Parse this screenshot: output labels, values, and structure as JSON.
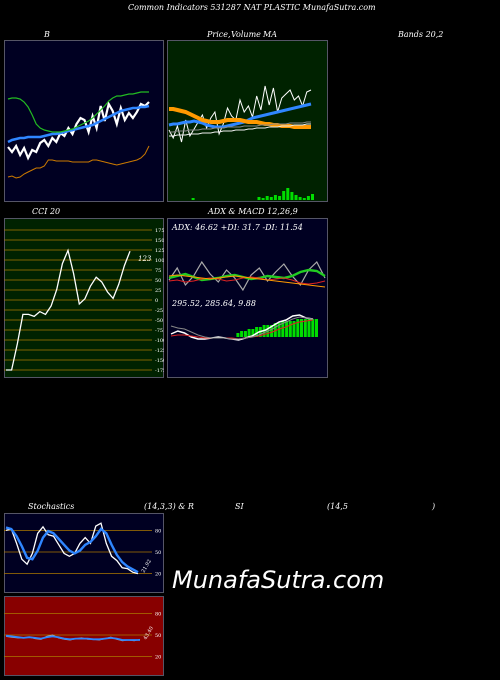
{
  "header": {
    "title": "Common  Indicators 531287 NAT PLASTIC MunafaSutra.com"
  },
  "titles": {
    "b": "B",
    "price_a": "Price,",
    "price_b": "Volume",
    "price_c": "MA",
    "bands": "Bands 20,2",
    "cci": "CCI 20",
    "adx_macd": "ADX  & MACD 12,26,9",
    "stoch": "Stochastics",
    "stoch_params": "(14,3,3) & R",
    "rsi": "SI",
    "rsi_params": "(14,5",
    "rsi_close": ")"
  },
  "adx_label": "ADX: 46.62  +DI: 31.7 -DI: 11.54",
  "macd_label": "295.52,  285.64,  9.88",
  "watermark": "MunafaSutra.com",
  "colors": {
    "dark_navy": "#000022",
    "dark_green": "#002200",
    "rsi_bg": "#880000"
  },
  "chart_data": [
    {
      "type": "line",
      "name": "bollinger",
      "series": [
        {
          "color": "#ffffff",
          "values": [
            147,
            152,
            146,
            155,
            148,
            158,
            150,
            152,
            143,
            140,
            146,
            138,
            142,
            133,
            136,
            128,
            134,
            124,
            118,
            120,
            132,
            116,
            128,
            106,
            121,
            104,
            111,
            124,
            108,
            120,
            113,
            118,
            112,
            104,
            106,
            102
          ]
        },
        {
          "color": "#2f86ff",
          "values": [
            142,
            140,
            139,
            138,
            138,
            137,
            137,
            137,
            137,
            136,
            135,
            134,
            134,
            133,
            132,
            131,
            130,
            129,
            128,
            127,
            126,
            125,
            123,
            121,
            119,
            117,
            115,
            113,
            111,
            110,
            109,
            108,
            108,
            107,
            107,
            106
          ]
        },
        {
          "color": "#22bb22",
          "values": [
            99,
            98,
            98,
            99,
            102,
            107,
            115,
            124,
            128,
            130,
            131,
            132,
            132,
            132,
            131,
            130,
            129,
            127,
            125,
            123,
            121,
            118,
            114,
            110,
            106,
            101,
            98,
            96,
            96,
            95,
            94,
            94,
            93,
            92,
            92,
            92
          ]
        },
        {
          "color": "#cc7a00",
          "values": [
            177,
            176,
            178,
            177,
            174,
            172,
            170,
            168,
            168,
            166,
            160,
            160,
            161,
            161,
            161,
            161,
            162,
            162,
            162,
            162,
            162,
            160,
            160,
            161,
            162,
            163,
            164,
            165,
            164,
            163,
            162,
            161,
            160,
            158,
            154,
            146
          ]
        }
      ]
    },
    {
      "type": "line",
      "name": "price_ma",
      "series": [
        {
          "color": "#ffffff",
          "values": [
            130,
            138,
            126,
            142,
            120,
            136,
            129,
            122,
            115,
            128,
            118,
            112,
            134,
            124,
            108,
            116,
            120,
            100,
            112,
            106,
            117,
            96,
            110,
            86,
            105,
            88,
            112,
            98,
            94,
            90,
            100,
            96,
            106,
            92,
            90
          ]
        },
        {
          "color": "#2f86ff",
          "values": [
            125,
            124,
            124,
            123,
            122,
            122,
            121,
            122,
            123,
            125,
            126,
            127,
            127,
            127,
            126,
            125,
            124,
            123,
            122,
            120,
            118,
            117,
            116,
            115,
            114,
            113,
            112,
            111,
            110,
            109,
            108,
            107,
            106,
            105,
            104
          ]
        },
        {
          "color": "#ff9900",
          "values": [
            109,
            109,
            110,
            111,
            112,
            114,
            116,
            118,
            120,
            121,
            122,
            122,
            122,
            121,
            120,
            120,
            120,
            120,
            121,
            122,
            122,
            122,
            123,
            124,
            124,
            125,
            125,
            126,
            126,
            126,
            127,
            127,
            127,
            127,
            127
          ]
        },
        {
          "color": "#888888",
          "values": [
            132,
            132,
            131,
            131,
            131,
            130,
            130,
            130,
            129,
            129,
            129,
            128,
            128,
            128,
            127,
            127,
            127,
            127,
            126,
            126,
            126,
            126,
            125,
            125,
            125,
            124,
            124,
            124,
            124,
            123,
            123,
            123,
            123,
            122,
            122
          ]
        },
        {
          "color": "#eeeeee",
          "values": [
            136,
            136,
            135,
            135,
            135,
            134,
            134,
            134,
            133,
            133,
            133,
            132,
            132,
            131,
            131,
            131,
            130,
            130,
            130,
            129,
            129,
            128,
            128,
            128,
            127,
            127,
            127,
            126,
            126,
            126,
            125,
            125,
            125,
            124,
            124
          ]
        }
      ],
      "volume": [
        0,
        0,
        0,
        0,
        0,
        2,
        0,
        0,
        0,
        0,
        0,
        0,
        0,
        0,
        0,
        0,
        0,
        0,
        0,
        0,
        0,
        3,
        2,
        4,
        3,
        5,
        4,
        9,
        12,
        8,
        5,
        3,
        2,
        4,
        6
      ]
    },
    {
      "type": "line",
      "name": "cci",
      "ylim": [
        -175,
        175
      ],
      "yticks": [
        175,
        150,
        125,
        100,
        75,
        50,
        25,
        0,
        -25,
        -50,
        -75,
        -100,
        -125,
        -150,
        -175
      ],
      "values": [
        -175,
        -175,
        -110,
        -36,
        -36,
        -41,
        -29,
        -36,
        -15,
        26,
        91,
        124,
        66,
        -10,
        3,
        35,
        57,
        45,
        20,
        4,
        39,
        86,
        122
      ],
      "last_label": "123"
    },
    {
      "type": "line",
      "name": "adx",
      "series": [
        {
          "color": "#aaaaaa",
          "values": [
            280,
            268,
            285,
            276,
            262,
            274,
            282,
            270,
            278,
            290,
            275,
            268,
            281,
            272,
            264,
            276,
            285,
            270,
            262,
            278
          ]
        },
        {
          "color": "#22cc22",
          "values": [
            278,
            276,
            274,
            277,
            280,
            279,
            278,
            276,
            275,
            277,
            279,
            278,
            276,
            277,
            278,
            276,
            272,
            270,
            271,
            276
          ]
        },
        {
          "color": "#dd2222",
          "values": [
            281,
            280,
            282,
            281,
            279,
            278,
            279,
            281,
            280,
            278,
            277,
            278,
            280,
            279,
            278,
            280,
            283,
            284,
            283,
            281
          ]
        },
        {
          "color": "#ff9900",
          "values": [
            276,
            275,
            276,
            277,
            278,
            279,
            278,
            277,
            276,
            277,
            278,
            279,
            280,
            281,
            282,
            283,
            284,
            285,
            286,
            287
          ]
        }
      ]
    },
    {
      "type": "bar",
      "name": "macd",
      "hist": [
        0,
        0,
        0,
        0,
        0,
        0,
        0,
        0,
        0,
        0,
        0,
        0,
        0,
        0,
        0,
        0,
        0,
        0,
        2,
        3,
        3,
        4,
        4,
        5,
        5,
        6,
        6,
        6,
        7,
        7,
        8,
        8,
        8,
        8,
        9,
        9,
        9,
        9,
        9,
        9
      ],
      "series": [
        {
          "color": "#ffffff",
          "values": [
            334,
            331,
            333,
            337,
            339,
            339,
            338,
            337,
            338,
            339,
            340,
            338,
            336,
            332,
            330,
            326,
            322,
            320,
            316,
            315,
            318,
            319
          ]
        },
        {
          "color": "#dd2222",
          "values": [
            336,
            335,
            335,
            336,
            337,
            338,
            338,
            338,
            338,
            338,
            339,
            338,
            337,
            336,
            334,
            332,
            329,
            327,
            324,
            322,
            321,
            320
          ]
        },
        {
          "color": "#888888",
          "values": [
            326,
            328,
            329,
            332,
            335,
            337,
            338,
            338,
            338,
            339,
            339,
            338,
            337,
            335,
            332,
            329,
            325,
            322,
            319,
            317,
            318,
            319
          ]
        }
      ]
    },
    {
      "type": "line",
      "name": "stochastics",
      "ylim": [
        0,
        100
      ],
      "yticks": [
        80,
        50,
        20
      ],
      "series": [
        {
          "color": "#ffffff",
          "values": [
            80,
            82,
            62,
            40,
            33,
            48,
            76,
            85,
            74,
            72,
            60,
            48,
            44,
            48,
            62,
            70,
            62,
            86,
            90,
            62,
            44,
            38,
            28,
            27,
            22,
            20
          ]
        },
        {
          "color": "#2f86ff",
          "values": [
            84,
            82,
            72,
            58,
            42,
            40,
            52,
            70,
            79,
            76,
            68,
            60,
            52,
            48,
            52,
            60,
            64,
            72,
            82,
            76,
            60,
            46,
            36,
            30,
            26,
            22
          ]
        }
      ],
      "last_label": "21.92"
    },
    {
      "type": "line",
      "name": "rsi",
      "ylim": [
        0,
        100
      ],
      "yticks": [
        80,
        50,
        20
      ],
      "series": [
        {
          "color": "#aaaaaa",
          "values": [
            48,
            47,
            46,
            46,
            47,
            45,
            44,
            48,
            50,
            46,
            44,
            43,
            45,
            46,
            44,
            44,
            43,
            45,
            47,
            44,
            42,
            43,
            42,
            44
          ]
        },
        {
          "color": "#2f86ff",
          "values": [
            49,
            48,
            47,
            46,
            47,
            46,
            45,
            47,
            48,
            47,
            45,
            44,
            45,
            45,
            45,
            44,
            44,
            45,
            46,
            45,
            43,
            43,
            43,
            43
          ]
        }
      ],
      "last_label": "43.40"
    }
  ]
}
